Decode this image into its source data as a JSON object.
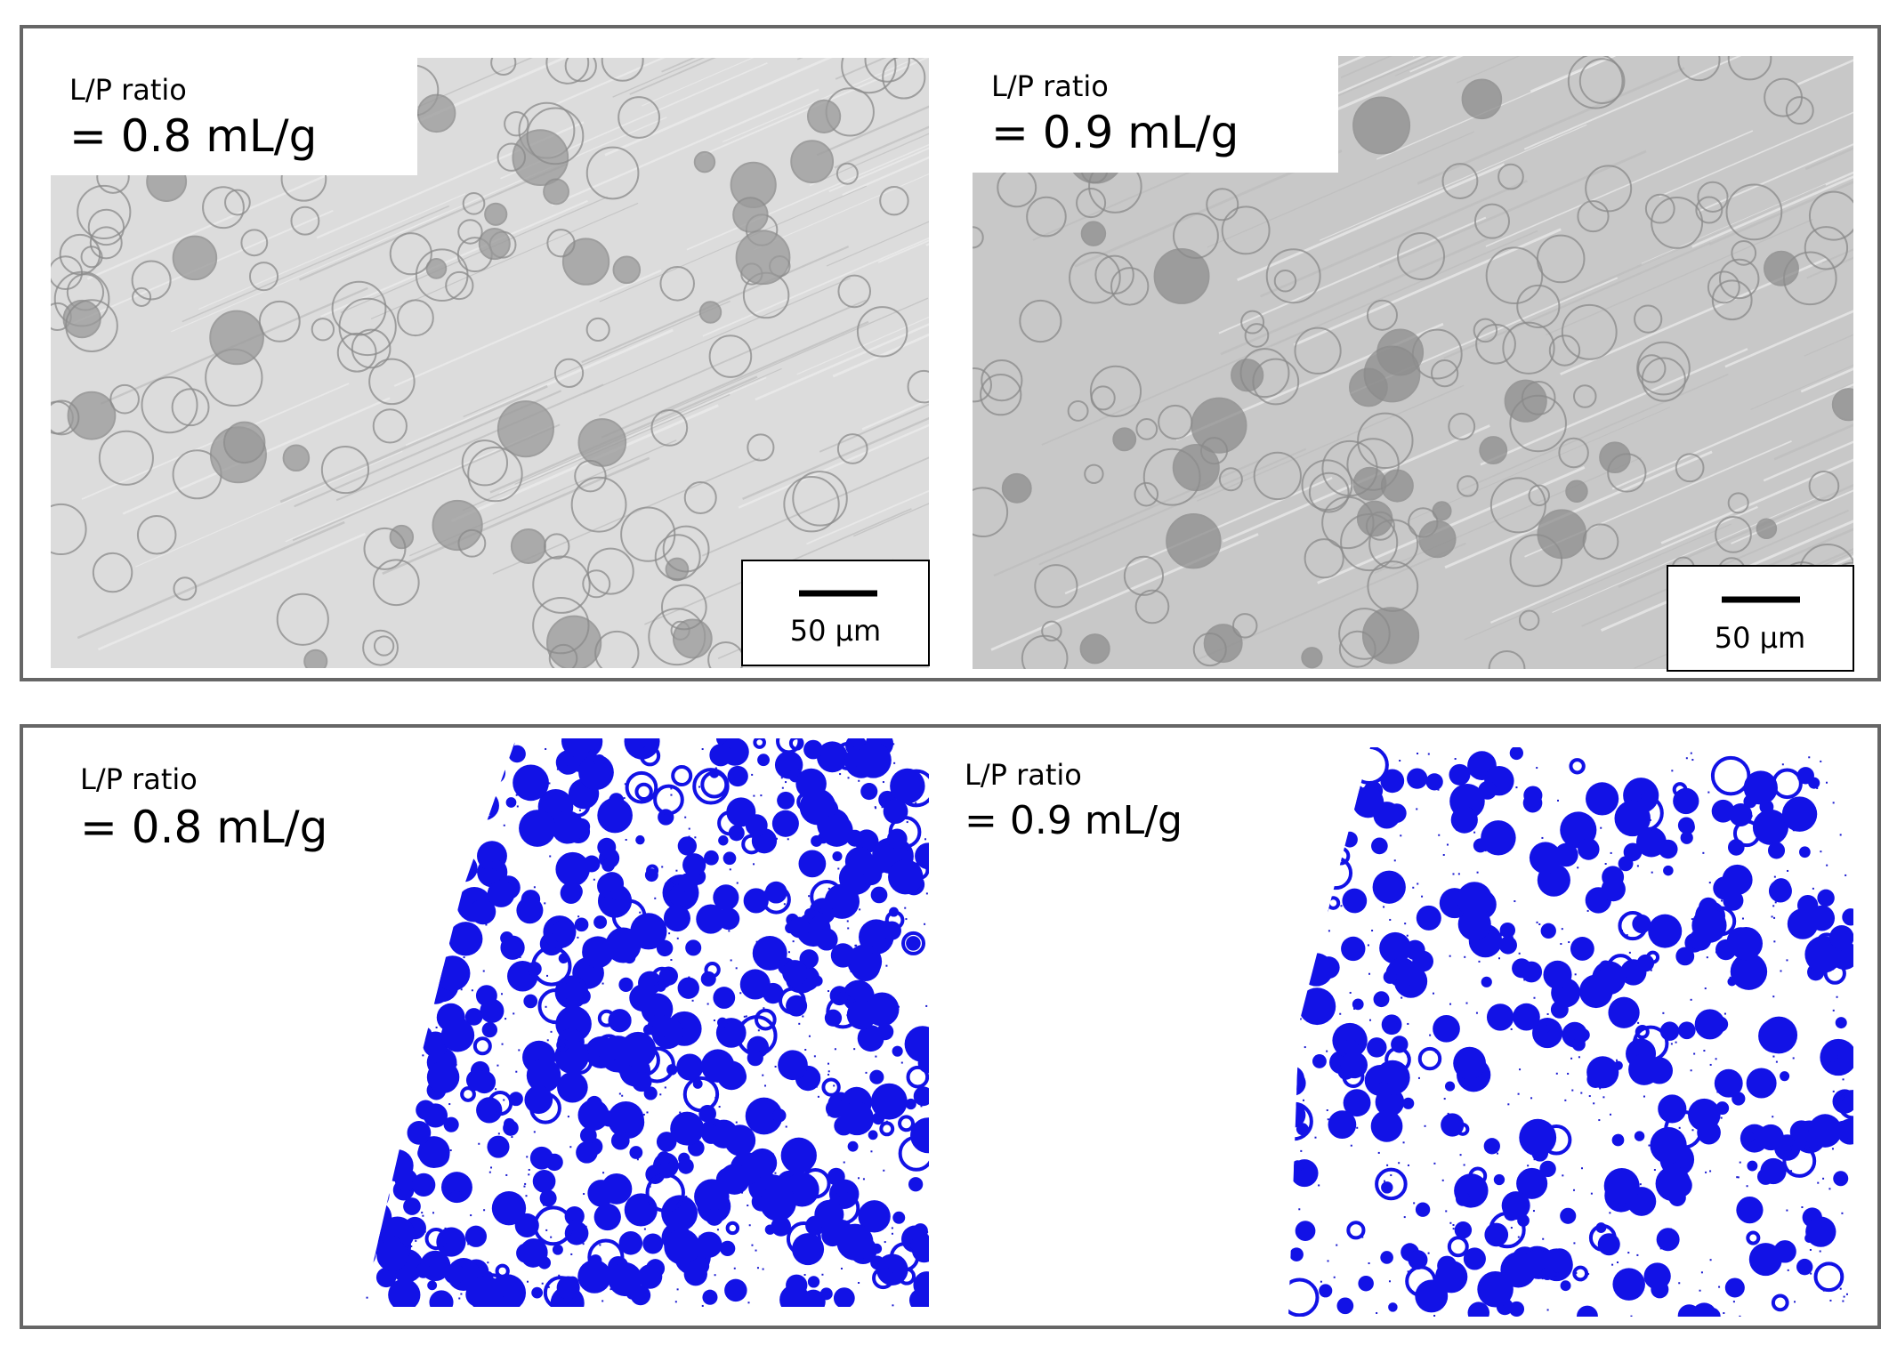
{
  "top_panel": {
    "images": [
      {
        "label_line1": "L/P ratio",
        "label_line2": "= 0.8 mL/g",
        "scale_bar": "50 μm"
      },
      {
        "label_line1": "L/P ratio",
        "label_line2": "= 0.9 mL/g",
        "scale_bar": "50 μm"
      }
    ]
  },
  "bottom_panel": {
    "images": [
      {
        "label_line1": "L/P ratio",
        "label_line2": "= 0.8 mL/g"
      },
      {
        "label_line1": "L/P ratio",
        "label_line2": "= 0.9 mL/g"
      }
    ]
  }
}
